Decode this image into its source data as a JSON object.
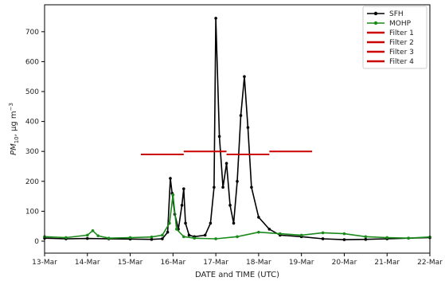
{
  "chart_data": {
    "type": "line",
    "xlabel": "DATE and TIME (UTC)",
    "ylabel": "PM10, µg m-3",
    "ylabel_parts": {
      "var": "PM",
      "sub": "10",
      "unit": ", µg m",
      "sup": "−3"
    },
    "x_ticks": [
      "13-Mar",
      "14-Mar",
      "15-Mar",
      "16-Mar",
      "17-Mar",
      "18-Mar",
      "19-Mar",
      "20-Mar",
      "21-Mar",
      "22-Mar"
    ],
    "y_ticks": [
      0,
      100,
      200,
      300,
      400,
      500,
      600,
      700
    ],
    "xlim": [
      "13-Mar 00:00",
      "22-Mar 00:00"
    ],
    "ylim": [
      -40,
      790
    ],
    "legend_position": "top-right",
    "grid": false,
    "series": [
      {
        "name": "SFH",
        "style": "line-with-markers",
        "color": "#000000",
        "points": [
          [
            "13-Mar 00:00",
            10
          ],
          [
            "13-Mar 12:00",
            8
          ],
          [
            "14-Mar 00:00",
            9
          ],
          [
            "14-Mar 12:00",
            8
          ],
          [
            "15-Mar 00:00",
            7
          ],
          [
            "15-Mar 12:00",
            6
          ],
          [
            "15-Mar 18:00",
            8
          ],
          [
            "15-Mar 21:00",
            30
          ],
          [
            "15-Mar 22:30",
            210
          ],
          [
            "15-Mar 23:30",
            160
          ],
          [
            "16-Mar 01:00",
            90
          ],
          [
            "16-Mar 03:00",
            40
          ],
          [
            "16-Mar 05:00",
            120
          ],
          [
            "16-Mar 06:00",
            175
          ],
          [
            "16-Mar 07:00",
            60
          ],
          [
            "16-Mar 09:00",
            20
          ],
          [
            "16-Mar 12:00",
            15
          ],
          [
            "16-Mar 18:00",
            20
          ],
          [
            "16-Mar 21:00",
            60
          ],
          [
            "16-Mar 23:00",
            180
          ],
          [
            "17-Mar 00:00",
            745
          ],
          [
            "17-Mar 02:00",
            350
          ],
          [
            "17-Mar 04:00",
            180
          ],
          [
            "17-Mar 06:00",
            260
          ],
          [
            "17-Mar 08:00",
            120
          ],
          [
            "17-Mar 10:00",
            60
          ],
          [
            "17-Mar 12:00",
            200
          ],
          [
            "17-Mar 14:00",
            420
          ],
          [
            "17-Mar 16:00",
            550
          ],
          [
            "17-Mar 18:00",
            380
          ],
          [
            "17-Mar 20:00",
            180
          ],
          [
            "18-Mar 00:00",
            80
          ],
          [
            "18-Mar 06:00",
            40
          ],
          [
            "18-Mar 12:00",
            20
          ],
          [
            "19-Mar 00:00",
            15
          ],
          [
            "19-Mar 12:00",
            8
          ],
          [
            "20-Mar 00:00",
            5
          ],
          [
            "20-Mar 12:00",
            6
          ],
          [
            "21-Mar 00:00",
            8
          ],
          [
            "21-Mar 12:00",
            10
          ],
          [
            "22-Mar 00:00",
            12
          ]
        ]
      },
      {
        "name": "MOHP",
        "style": "line-with-markers",
        "color": "#1a8a1a",
        "points": [
          [
            "13-Mar 00:00",
            15
          ],
          [
            "13-Mar 12:00",
            12
          ],
          [
            "14-Mar 00:00",
            20
          ],
          [
            "14-Mar 03:00",
            35
          ],
          [
            "14-Mar 06:00",
            18
          ],
          [
            "14-Mar 12:00",
            10
          ],
          [
            "15-Mar 00:00",
            12
          ],
          [
            "15-Mar 12:00",
            14
          ],
          [
            "15-Mar 18:00",
            20
          ],
          [
            "15-Mar 22:00",
            60
          ],
          [
            "16-Mar 00:00",
            155
          ],
          [
            "16-Mar 02:00",
            40
          ],
          [
            "16-Mar 06:00",
            15
          ],
          [
            "16-Mar 12:00",
            10
          ],
          [
            "17-Mar 00:00",
            8
          ],
          [
            "17-Mar 12:00",
            15
          ],
          [
            "18-Mar 00:00",
            30
          ],
          [
            "18-Mar 12:00",
            25
          ],
          [
            "19-Mar 00:00",
            20
          ],
          [
            "19-Mar 12:00",
            28
          ],
          [
            "20-Mar 00:00",
            25
          ],
          [
            "20-Mar 12:00",
            15
          ],
          [
            "21-Mar 00:00",
            12
          ],
          [
            "21-Mar 12:00",
            10
          ],
          [
            "22-Mar 00:00",
            14
          ]
        ]
      },
      {
        "name": "Filter 1",
        "style": "segment",
        "color": "#cc0000",
        "x": [
          "15-Mar 06:00",
          "16-Mar 06:00"
        ],
        "y": 290
      },
      {
        "name": "Filter 2",
        "style": "segment",
        "color": "#cc0000",
        "x": [
          "16-Mar 06:00",
          "17-Mar 06:00"
        ],
        "y": 300
      },
      {
        "name": "Filter 3",
        "style": "segment",
        "color": "#cc0000",
        "x": [
          "17-Mar 06:00",
          "18-Mar 06:00"
        ],
        "y": 290
      },
      {
        "name": "Filter 4",
        "style": "segment",
        "color": "#cc0000",
        "x": [
          "18-Mar 06:00",
          "19-Mar 06:00"
        ],
        "y": 300
      }
    ]
  }
}
